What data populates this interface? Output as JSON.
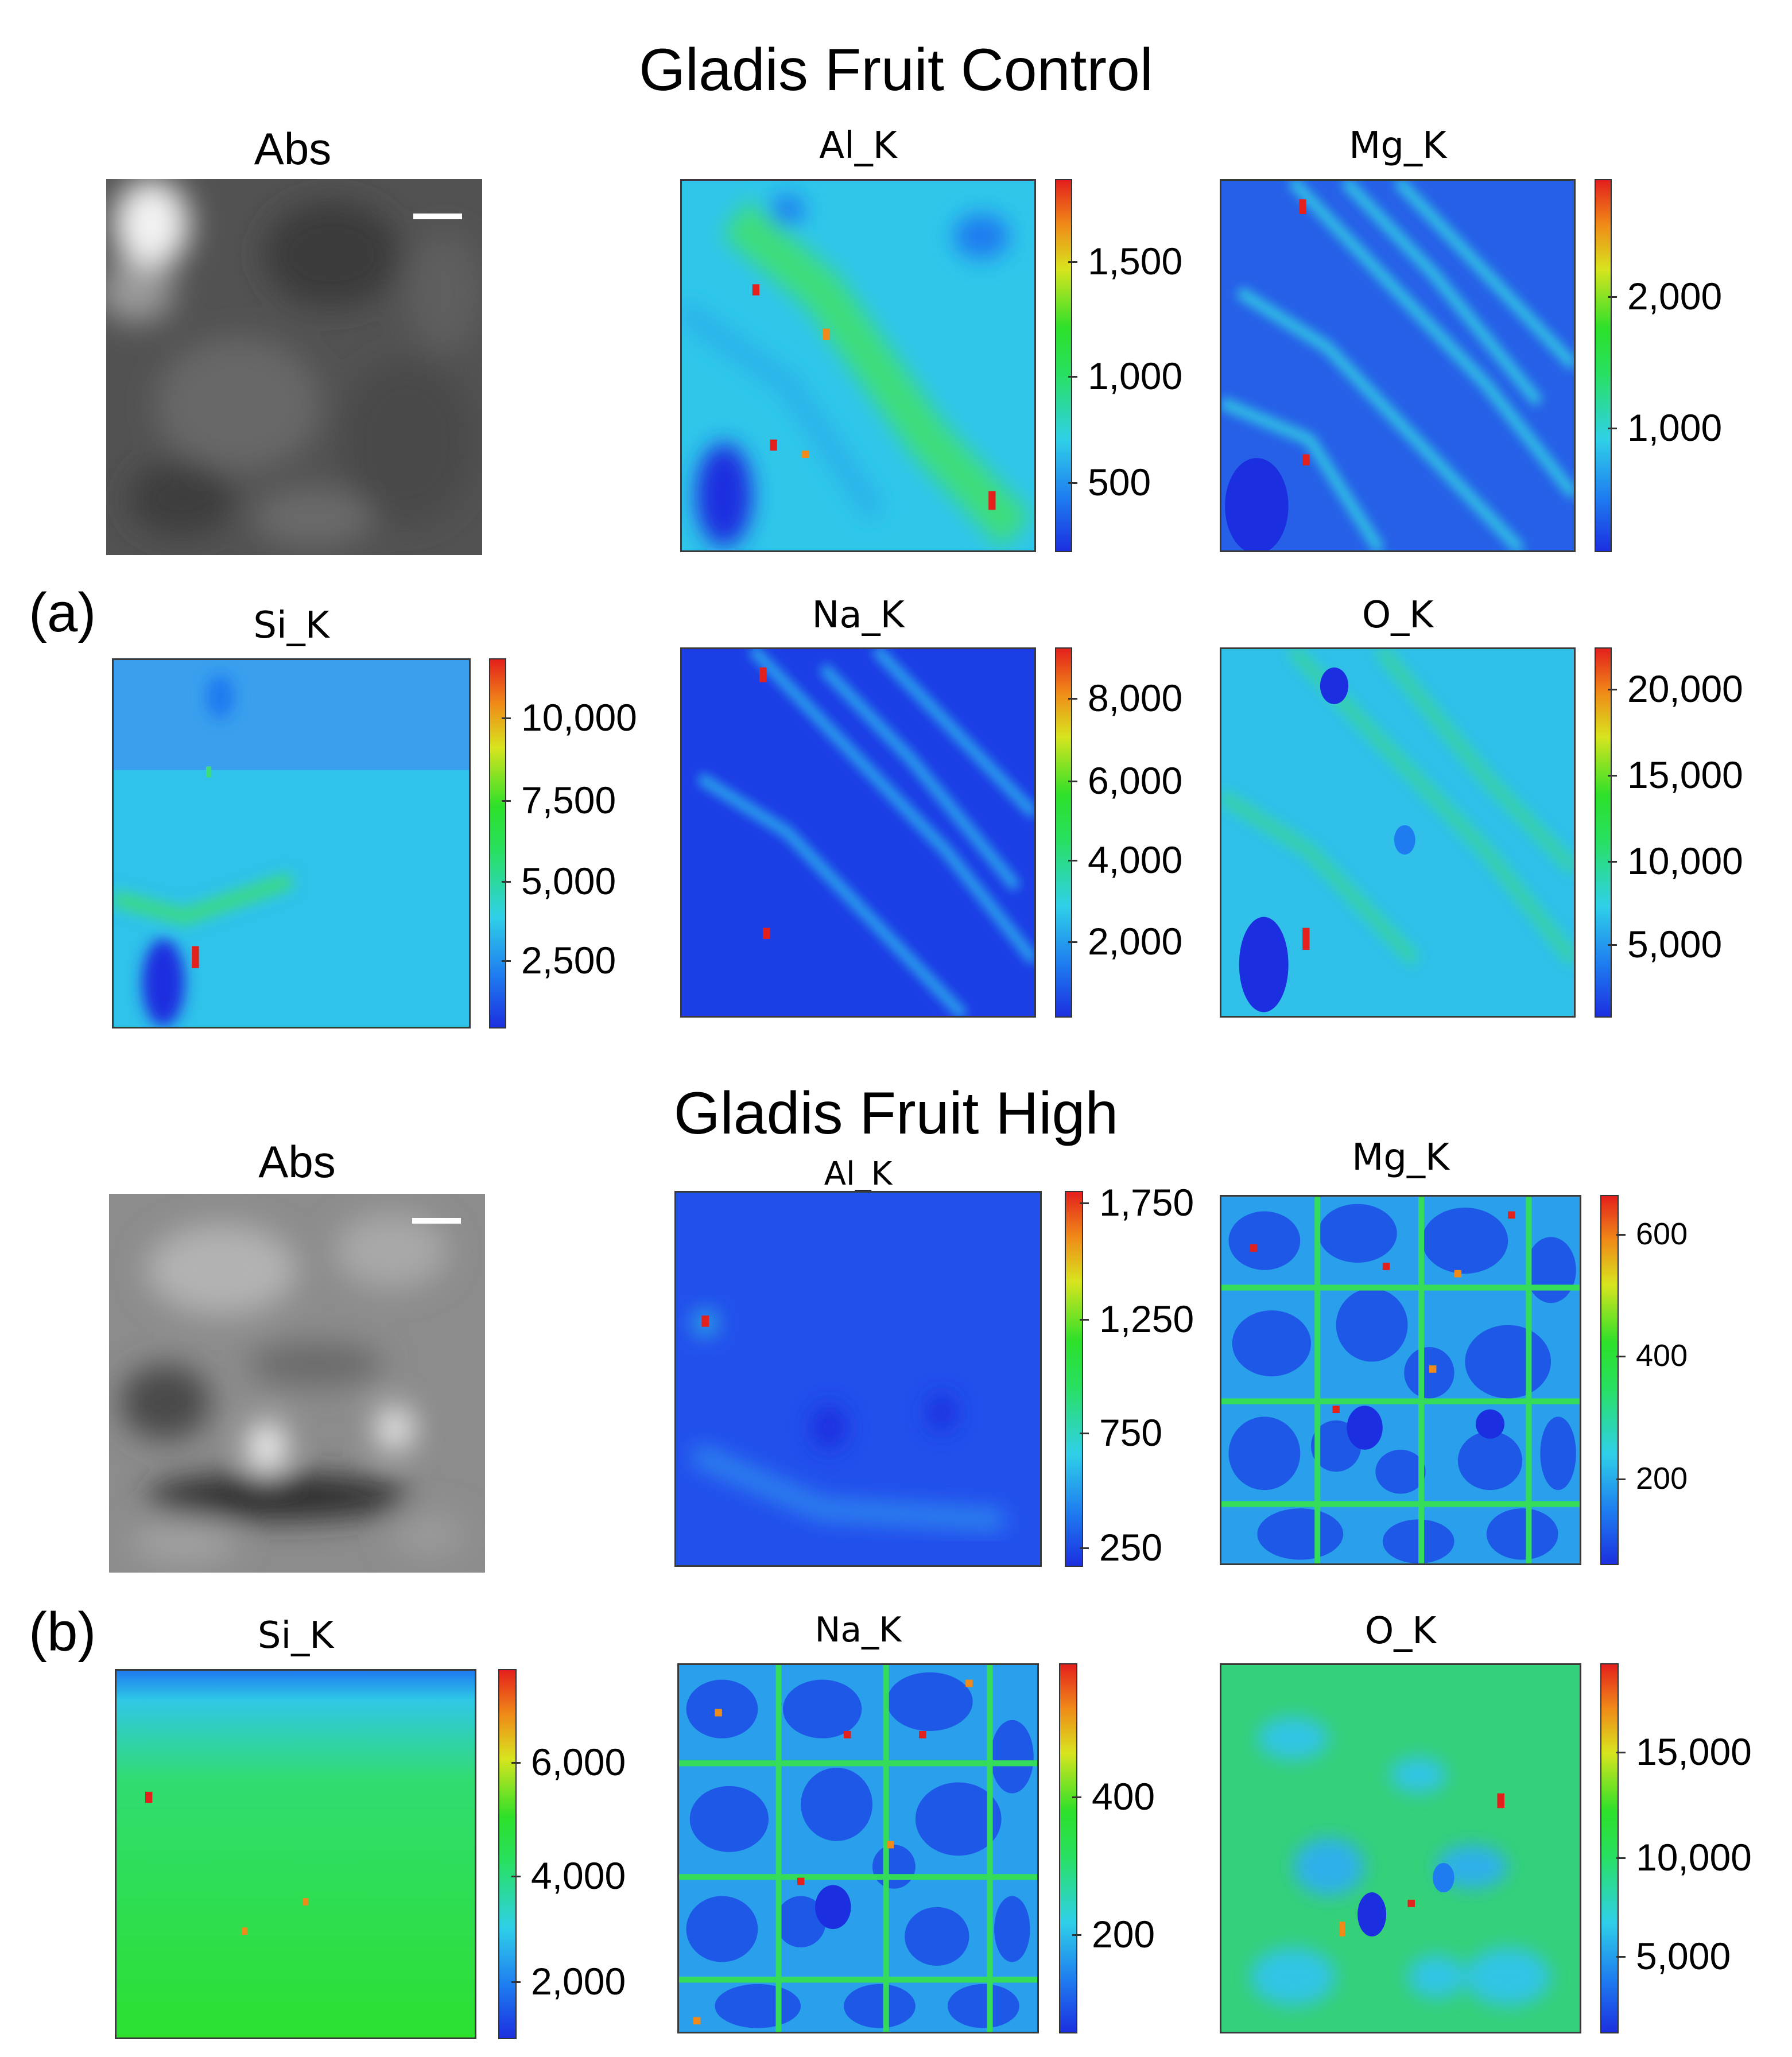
{
  "figure": {
    "control": {
      "title": "Gladis Fruit Control",
      "label": "(a)",
      "panels": [
        {
          "name": "Abs",
          "type": "abs"
        },
        {
          "name": "Al_K",
          "type": "map",
          "ticks": [
            "1,500",
            "1,000",
            "500"
          ]
        },
        {
          "name": "Mg_K",
          "type": "map",
          "ticks": [
            "2,000",
            "1,000"
          ]
        },
        {
          "name": "Si_K",
          "type": "map",
          "ticks": [
            "10,000",
            "7,500",
            "5,000",
            "2,500"
          ]
        },
        {
          "name": "Na_K",
          "type": "map",
          "ticks": [
            "8,000",
            "6,000",
            "4,000",
            "2,000"
          ]
        },
        {
          "name": "O_K",
          "type": "map",
          "ticks": [
            "20,000",
            "15,000",
            "10,000",
            "5,000"
          ]
        }
      ]
    },
    "high": {
      "title": "Gladis Fruit High",
      "label": "(b)",
      "panels": [
        {
          "name": "Abs",
          "type": "abs"
        },
        {
          "name": "Al_K",
          "type": "map",
          "ticks": [
            "1,750",
            "1,250",
            "750",
            "250"
          ]
        },
        {
          "name": "Mg_K",
          "type": "map",
          "ticks": [
            "600",
            "400",
            "200"
          ]
        },
        {
          "name": "Si_K",
          "type": "map",
          "ticks": [
            "6,000",
            "4,000",
            "2,000"
          ]
        },
        {
          "name": "Na_K",
          "type": "map",
          "ticks": [
            "400",
            "200"
          ]
        },
        {
          "name": "O_K",
          "type": "map",
          "ticks": [
            "15,000",
            "10,000",
            "5,000"
          ]
        }
      ]
    }
  },
  "colors": {
    "colormap": [
      "#1c2fe0",
      "#1e7bf0",
      "#2fd0e8",
      "#28e060",
      "#d8e41e",
      "#f08a18",
      "#e4201c"
    ],
    "abs_gray": "#5a5a5a"
  }
}
